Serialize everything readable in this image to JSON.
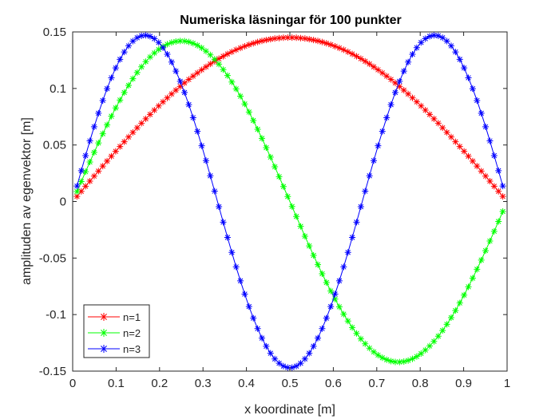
{
  "chart_data": {
    "type": "line",
    "title": "Numeriska läsningar för 100 punkter",
    "xlabel": "x koordinate [m]",
    "ylabel": "amplituden av egenvektor [m]",
    "xlim": [
      0,
      1
    ],
    "ylim": [
      -0.15,
      0.15
    ],
    "xticks": [
      0,
      0.1,
      0.2,
      0.3,
      0.4,
      0.5,
      0.6,
      0.7,
      0.8,
      0.9,
      1
    ],
    "xtick_labels": [
      "0",
      "0.1",
      "0.2",
      "0.3",
      "0.4",
      "0.5",
      "0.6",
      "0.7",
      "0.8",
      "0.9",
      "1"
    ],
    "yticks": [
      -0.15,
      -0.1,
      -0.05,
      0,
      0.05,
      0.1,
      0.15
    ],
    "ytick_labels": [
      "-0.15",
      "-0.1",
      "-0.05",
      "0",
      "0.05",
      "0.1",
      "0.15"
    ],
    "grid": false,
    "legend_position": "bottom-left",
    "marker": "asterisk",
    "points_per_series": 100,
    "series": [
      {
        "name": "n=1",
        "color": "#ff0000",
        "mode": 1,
        "amplitude": 0.145,
        "sign": 1
      },
      {
        "name": "n=2",
        "color": "#00ff00",
        "mode": 2,
        "amplitude": 0.142,
        "sign": 1
      },
      {
        "name": "n=3",
        "color": "#0000ff",
        "mode": 3,
        "amplitude": 0.147,
        "sign": 1
      }
    ]
  }
}
